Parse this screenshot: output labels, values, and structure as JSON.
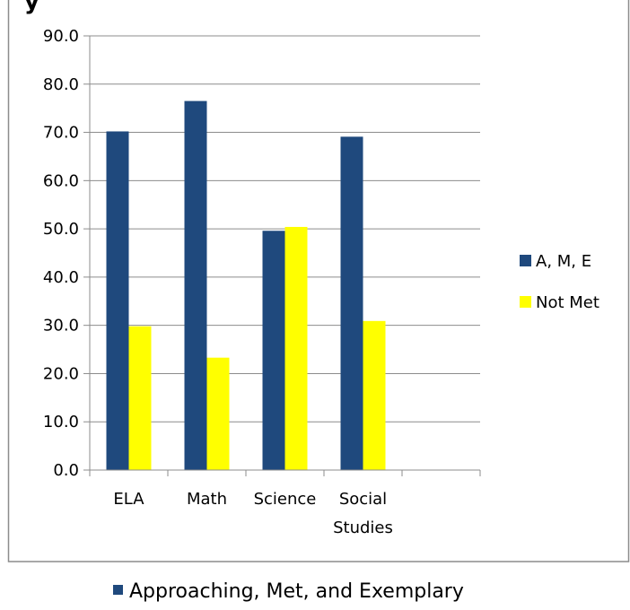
{
  "header_fragment": "y",
  "chart_data": {
    "type": "bar",
    "categories": [
      "ELA",
      "Math",
      "Science",
      "Social Studies",
      ""
    ],
    "series": [
      {
        "name": "A, M, E",
        "color": "#1F497D",
        "values": [
          70.2,
          76.5,
          49.6,
          69.1,
          null
        ]
      },
      {
        "name": "Not Met",
        "color": "#FFFF00",
        "values": [
          29.8,
          23.3,
          50.4,
          30.9,
          null
        ]
      }
    ],
    "title": "",
    "xlabel": "",
    "ylabel": "",
    "ylim": [
      0,
      90
    ],
    "y_ticks": [
      "0.0",
      "10.0",
      "20.0",
      "30.0",
      "40.0",
      "50.0",
      "60.0",
      "70.0",
      "80.0",
      "90.0"
    ],
    "grid": true,
    "legend_position": "right"
  },
  "footer_legend": {
    "label": "Approaching, Met, and Exemplary",
    "color": "#1F497D"
  }
}
